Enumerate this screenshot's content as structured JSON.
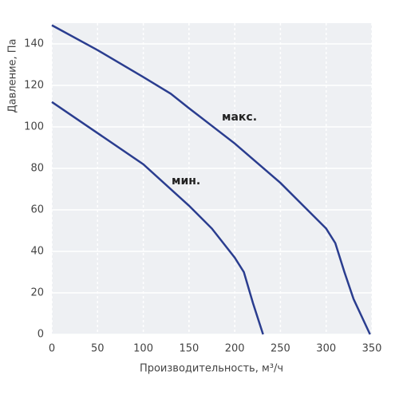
{
  "chart_data": {
    "type": "line",
    "x_label": "Производительность, м³/ч",
    "y_label": "Давление, Па",
    "annotations": [
      "макс.",
      "мин."
    ],
    "series": [
      {
        "color": "#2a3d8f",
        "x": [
          0,
          50,
          100,
          130,
          150,
          200,
          250,
          300,
          310,
          320,
          330,
          348
        ],
        "values": [
          149,
          137,
          124,
          116,
          109,
          92,
          73,
          51,
          44,
          30,
          17,
          0
        ]
      },
      {
        "color": "#2a3d8f",
        "x": [
          0,
          50,
          100,
          150,
          175,
          200,
          210,
          220,
          231
        ],
        "values": [
          112,
          97,
          82,
          62,
          51,
          37,
          30,
          15,
          0
        ]
      }
    ],
    "xlim": [
      0,
      350
    ],
    "xticks": [
      0,
      50,
      100,
      150,
      200,
      250,
      300,
      350
    ],
    "ylim": [
      0,
      150
    ],
    "yticks": [
      0,
      20,
      40,
      60,
      80,
      100,
      120,
      140
    ],
    "grid": true
  }
}
